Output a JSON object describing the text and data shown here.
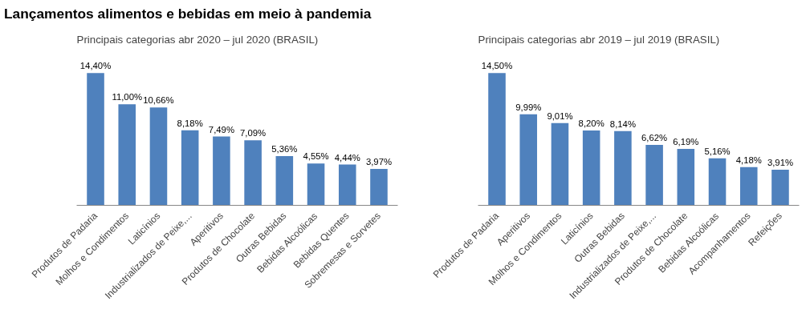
{
  "chart_data": [
    {
      "type": "bar",
      "title": "Lançamentos alimentos e bebidas em meio à pandemia",
      "subtitle": "Principais categorias abr 2020 – jul 2020 (BRASIL)",
      "color": "#4f81bd",
      "categories": [
        "Produtos de Padaria",
        "Molhos e Condimentos",
        "Laticínios",
        "Industrializados de Peixe,...",
        "Aperitivos",
        "Produtos de Chocolate",
        "Outras Bebidas",
        "Bebidas Alcoólicas",
        "Bebidas Quentes",
        "Sobremesas e Sorvetes"
      ],
      "values": [
        14.4,
        11.0,
        10.66,
        8.18,
        7.49,
        7.09,
        5.36,
        4.55,
        4.44,
        3.97
      ],
      "value_labels": [
        "14,40%",
        "11,00%",
        "10,66%",
        "8,18%",
        "7,49%",
        "7,09%",
        "5,36%",
        "4,55%",
        "4,44%",
        "3,97%"
      ]
    },
    {
      "type": "bar",
      "subtitle": "Principais categorias abr 2019 – jul 2019 (BRASIL)",
      "color": "#4f81bd",
      "categories": [
        "Produtos de Padaria",
        "Aperitivos",
        "Molhos e Condimentos",
        "Laticínios",
        "Outras Bebidas",
        "Industrializados de Peixe,...",
        "Produtos de Chocolate",
        "Bebidas Alcoólicas",
        "Acompanhamentos",
        "Refeições"
      ],
      "values": [
        14.5,
        9.99,
        9.01,
        8.2,
        8.14,
        6.62,
        6.19,
        5.16,
        4.18,
        3.91
      ],
      "value_labels": [
        "14,50%",
        "9,99%",
        "9,01%",
        "8,20%",
        "8,14%",
        "6,62%",
        "6,19%",
        "5,16%",
        "4,18%",
        "3,91%"
      ]
    }
  ]
}
